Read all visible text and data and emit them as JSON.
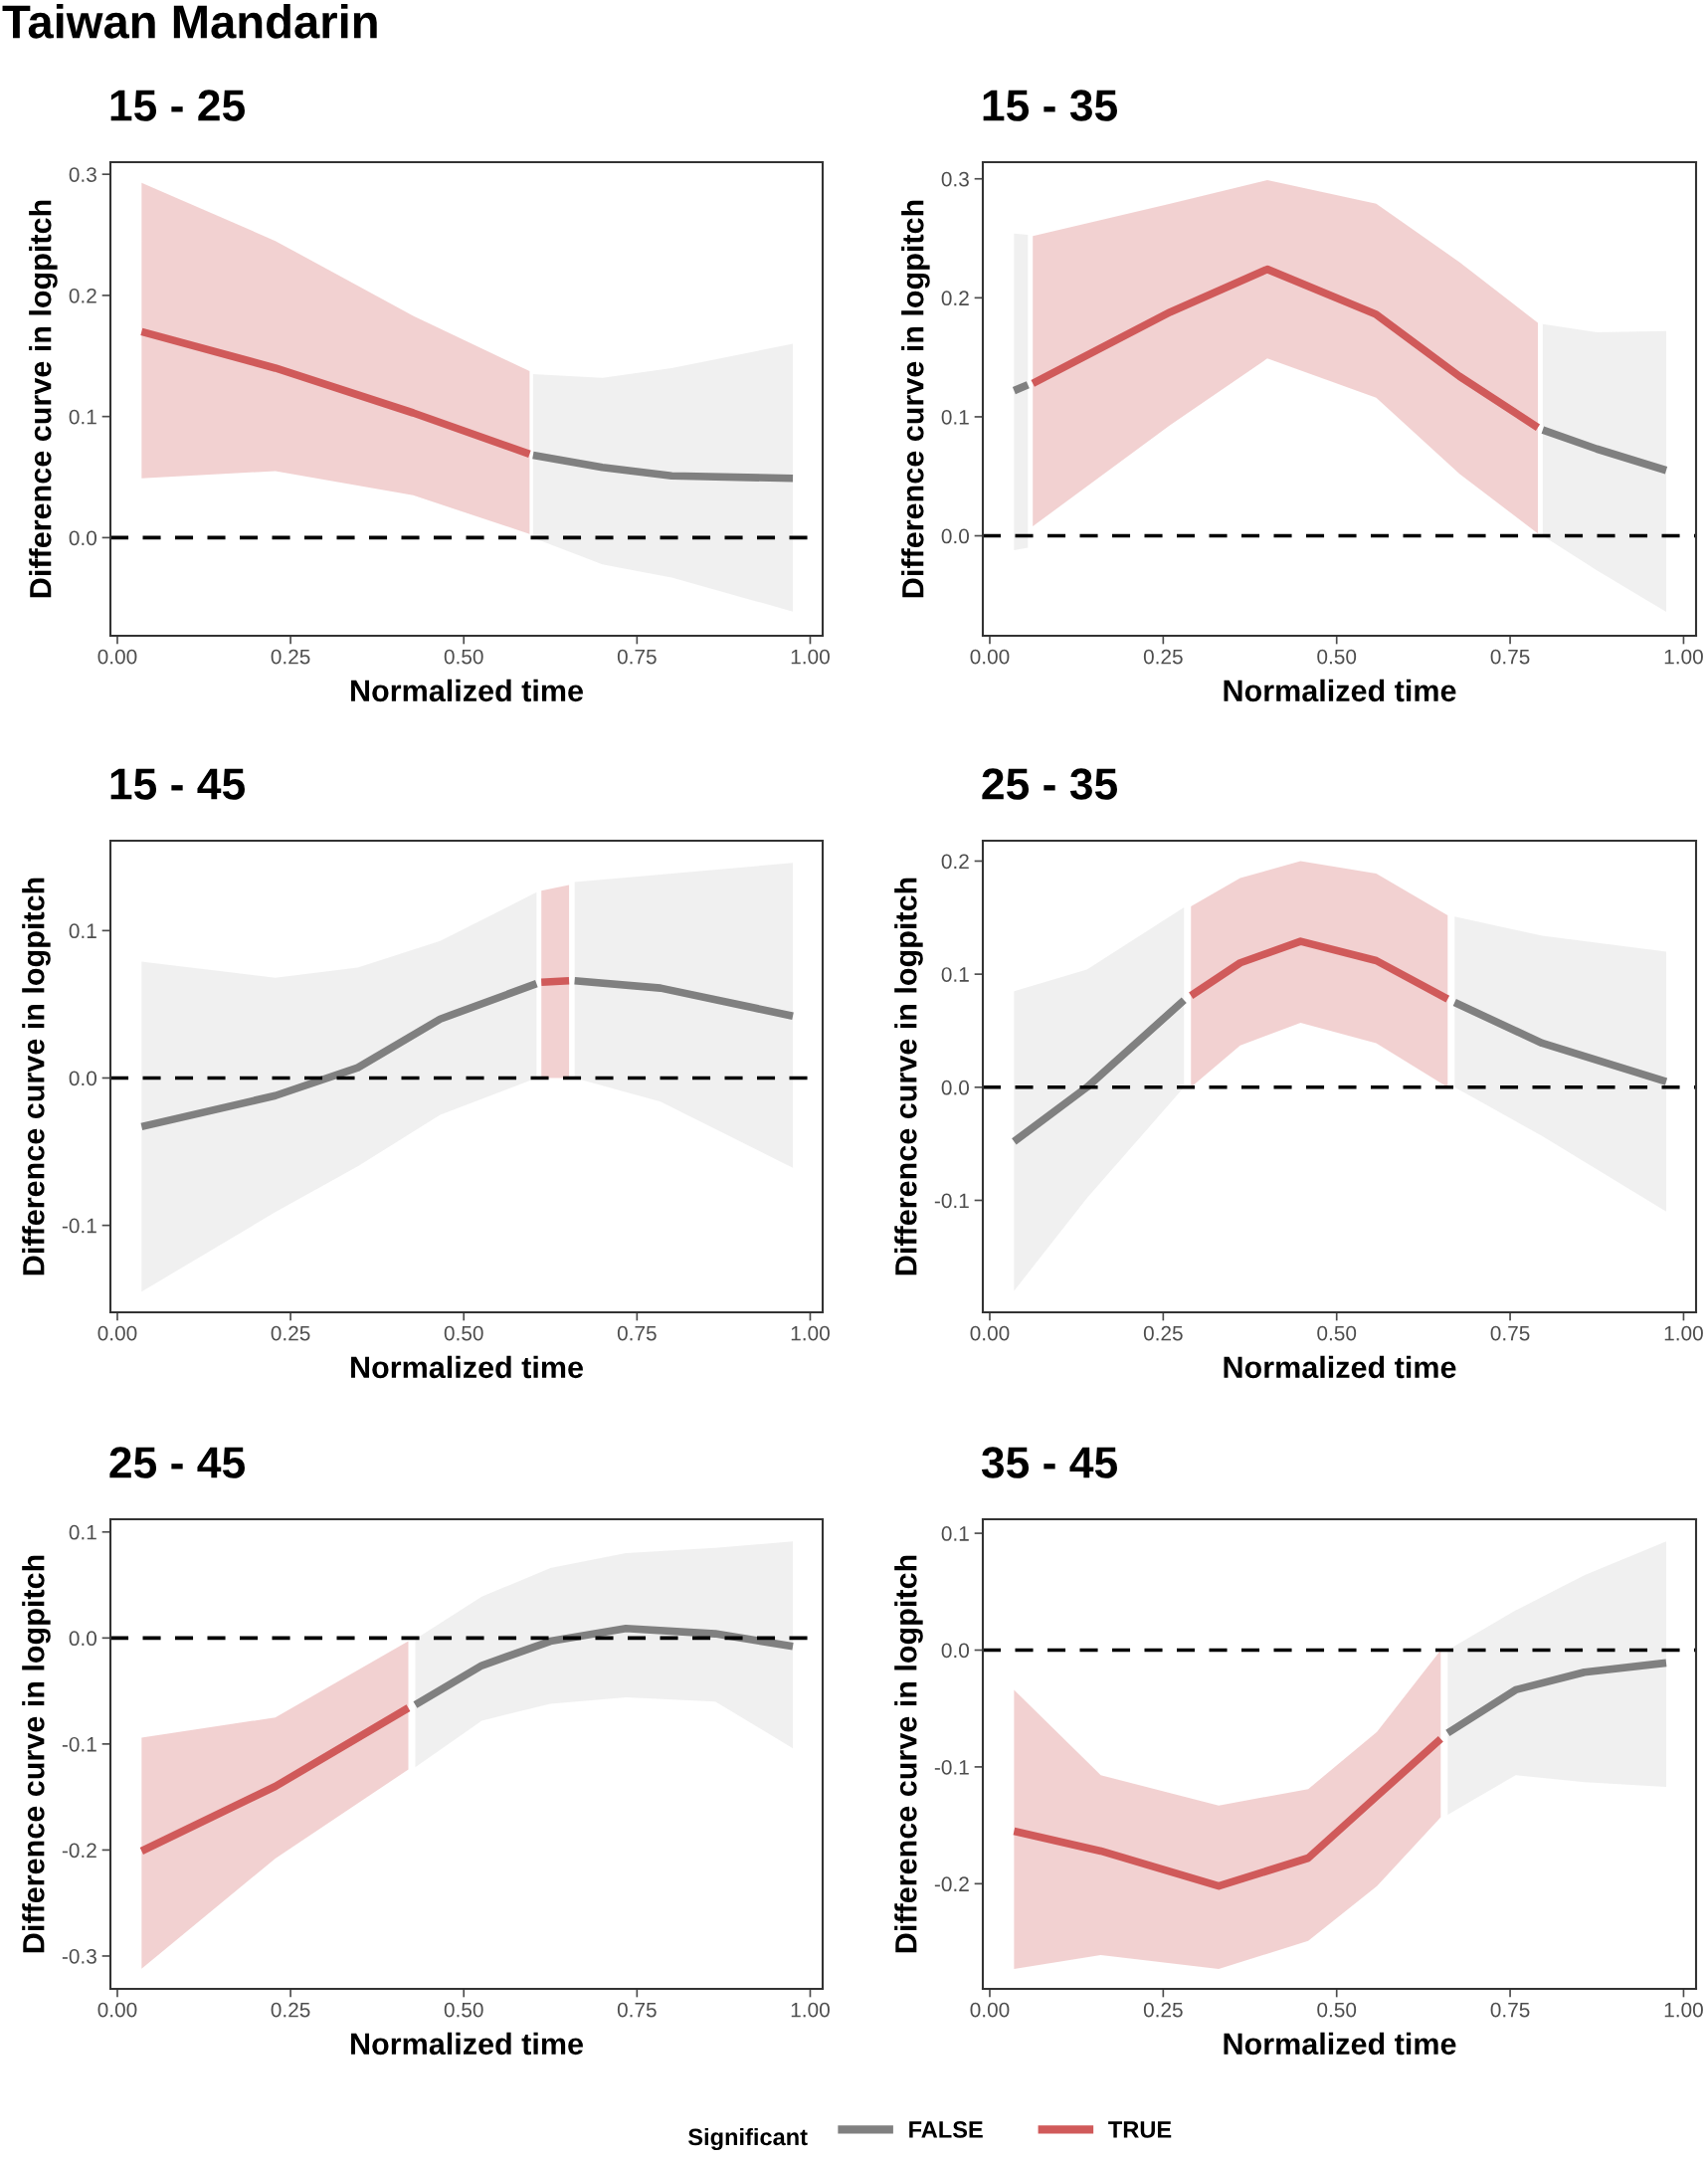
{
  "chart_data": [
    {
      "type": "line",
      "title": "15 - 25",
      "xlabel": "Normalized time",
      "ylabel": "Difference curve in logpitch",
      "annotations": [
        "Taiwan Mandarin"
      ],
      "legend": "bottom",
      "legend_title": "Significant",
      "xlim": [
        -0.01,
        1.018
      ],
      "ylim": [
        -0.081,
        0.31
      ],
      "xticks": [
        {
          "value": 0,
          "label": "0.00"
        },
        {
          "value": 0.25,
          "label": "0.25"
        },
        {
          "value": 0.5,
          "label": "0.50"
        },
        {
          "value": 0.75,
          "label": "0.75"
        },
        {
          "value": 1,
          "label": "1.00"
        }
      ],
      "yticks": [
        {
          "value": 0,
          "label": "0.0"
        },
        {
          "value": 0.1,
          "label": "0.1"
        },
        {
          "value": 0.2,
          "label": "0.2"
        },
        {
          "value": 0.3,
          "label": "0.3"
        }
      ],
      "ref_lines": [
        {
          "axis": "y",
          "value": 0,
          "color": "#000000",
          "line_style": "dashed"
        }
      ],
      "series": [
        {
          "name": "FALSE",
          "color": "#808080",
          "x": [
            0.6,
            0.7,
            0.8,
            0.975
          ],
          "values": [
            0.068,
            0.058,
            0.051,
            0.049
          ],
          "lower": [
            0.0,
            -0.022,
            -0.033,
            -0.061
          ],
          "upper": [
            0.135,
            0.132,
            0.14,
            0.16
          ]
        },
        {
          "name": "TRUE",
          "color": "#d05a5a",
          "x": [
            0.035,
            0.228,
            0.427,
            0.595
          ],
          "values": [
            0.17,
            0.14,
            0.103,
            0.069
          ],
          "lower": [
            0.049,
            0.055,
            0.035,
            0.003
          ],
          "upper": [
            0.293,
            0.245,
            0.183,
            0.1375
          ]
        }
      ]
    },
    {
      "type": "line",
      "title": "15 - 35",
      "xlabel": "Normalized time",
      "ylabel": "Difference curve in logpitch",
      "xlim": [
        -0.01,
        1.018
      ],
      "ylim": [
        -0.084,
        0.314
      ],
      "xticks": [
        {
          "value": 0,
          "label": "0.00"
        },
        {
          "value": 0.25,
          "label": "0.25"
        },
        {
          "value": 0.5,
          "label": "0.50"
        },
        {
          "value": 0.75,
          "label": "0.75"
        },
        {
          "value": 1,
          "label": "1.00"
        }
      ],
      "yticks": [
        {
          "value": 0,
          "label": "0.0"
        },
        {
          "value": 0.1,
          "label": "0.1"
        },
        {
          "value": 0.2,
          "label": "0.2"
        },
        {
          "value": 0.3,
          "label": "0.3"
        }
      ],
      "ref_lines": [
        {
          "axis": "y",
          "value": 0,
          "color": "#000000",
          "line_style": "dashed"
        }
      ],
      "series": [
        {
          "name": "FALSE",
          "color": "#808080",
          "x": [
            0.035,
            0.055
          ],
          "values": [
            0.122,
            0.127
          ],
          "lower": [
            -0.012,
            -0.01
          ],
          "upper": [
            0.254,
            0.253
          ]
        },
        {
          "name": "TRUE",
          "color": "#d05a5a",
          "x": [
            0.062,
            0.26,
            0.4,
            0.557,
            0.677,
            0.79
          ],
          "values": [
            0.128,
            0.188,
            0.224,
            0.186,
            0.134,
            0.091
          ],
          "lower": [
            0.008,
            0.093,
            0.149,
            0.116,
            0.052,
            0.002
          ],
          "upper": [
            0.252,
            0.279,
            0.299,
            0.279,
            0.23,
            0.179
          ]
        },
        {
          "name": "FALSE",
          "color": "#808080",
          "x": [
            0.797,
            0.875,
            0.975
          ],
          "values": [
            0.089,
            0.073,
            0.055
          ],
          "lower": [
            0.0,
            -0.029,
            -0.064
          ],
          "upper": [
            0.178,
            0.171,
            0.172
          ]
        }
      ]
    },
    {
      "type": "line",
      "title": "15 - 45",
      "xlabel": "Normalized time",
      "ylabel": "Difference curve in logpitch",
      "xlim": [
        -0.01,
        1.018
      ],
      "ylim": [
        -0.159,
        0.161
      ],
      "xticks": [
        {
          "value": 0,
          "label": "0.00"
        },
        {
          "value": 0.25,
          "label": "0.25"
        },
        {
          "value": 0.5,
          "label": "0.50"
        },
        {
          "value": 0.75,
          "label": "0.75"
        },
        {
          "value": 1,
          "label": "1.00"
        }
      ],
      "yticks": [
        {
          "value": -0.1,
          "label": "-0.1"
        },
        {
          "value": 0,
          "label": "0.0"
        },
        {
          "value": 0.1,
          "label": "0.1"
        }
      ],
      "ref_lines": [
        {
          "axis": "y",
          "value": 0,
          "color": "#000000",
          "line_style": "dashed"
        }
      ],
      "series": [
        {
          "name": "FALSE",
          "color": "#808080",
          "x": [
            0.035,
            0.228,
            0.347,
            0.466,
            0.605
          ],
          "values": [
            -0.033,
            -0.012,
            0.007,
            0.04,
            0.064
          ],
          "lower": [
            -0.145,
            -0.091,
            -0.06,
            -0.025,
            0.0
          ],
          "upper": [
            0.079,
            0.068,
            0.075,
            0.093,
            0.126
          ]
        },
        {
          "name": "TRUE",
          "color": "#d05a5a",
          "x": [
            0.612,
            0.652
          ],
          "values": [
            0.065,
            0.066
          ],
          "lower": [
            0.0,
            0.0
          ],
          "upper": [
            0.127,
            0.131
          ]
        },
        {
          "name": "FALSE",
          "color": "#808080",
          "x": [
            0.66,
            0.784,
            0.975
          ],
          "values": [
            0.066,
            0.061,
            0.042
          ],
          "lower": [
            0.0,
            -0.016,
            -0.061
          ],
          "upper": [
            0.133,
            0.138,
            0.146
          ]
        }
      ]
    },
    {
      "type": "line",
      "title": "25 - 35",
      "xlabel": "Normalized time",
      "ylabel": "Difference curve in logpitch",
      "xlim": [
        -0.01,
        1.018
      ],
      "ylim": [
        -0.199,
        0.218
      ],
      "xticks": [
        {
          "value": 0,
          "label": "0.00"
        },
        {
          "value": 0.25,
          "label": "0.25"
        },
        {
          "value": 0.5,
          "label": "0.50"
        },
        {
          "value": 0.75,
          "label": "0.75"
        },
        {
          "value": 1,
          "label": "1.00"
        }
      ],
      "yticks": [
        {
          "value": -0.1,
          "label": "-0.1"
        },
        {
          "value": 0,
          "label": "0.0"
        },
        {
          "value": 0.1,
          "label": "0.1"
        },
        {
          "value": 0.2,
          "label": "0.2"
        }
      ],
      "ref_lines": [
        {
          "axis": "y",
          "value": 0,
          "color": "#000000",
          "line_style": "dashed"
        }
      ],
      "series": [
        {
          "name": "FALSE",
          "color": "#808080",
          "x": [
            0.035,
            0.14,
            0.28
          ],
          "values": [
            -0.048,
            0.0,
            0.077
          ],
          "lower": [
            -0.18,
            -0.098,
            0.0
          ],
          "upper": [
            0.085,
            0.104,
            0.159
          ]
        },
        {
          "name": "TRUE",
          "color": "#d05a5a",
          "x": [
            0.29,
            0.361,
            0.448,
            0.557,
            0.66
          ],
          "values": [
            0.081,
            0.11,
            0.129,
            0.112,
            0.078
          ],
          "lower": [
            0.0,
            0.037,
            0.057,
            0.039,
            0.0
          ],
          "upper": [
            0.16,
            0.185,
            0.2,
            0.189,
            0.152
          ]
        },
        {
          "name": "FALSE",
          "color": "#808080",
          "x": [
            0.67,
            0.796,
            0.975
          ],
          "values": [
            0.075,
            0.039,
            0.005
          ],
          "lower": [
            0.0,
            -0.043,
            -0.11
          ],
          "upper": [
            0.151,
            0.134,
            0.12
          ]
        }
      ]
    },
    {
      "type": "line",
      "title": "25 - 45",
      "xlabel": "Normalized time",
      "ylabel": "Difference curve in logpitch",
      "xlim": [
        -0.01,
        1.018
      ],
      "ylim": [
        -0.331,
        0.112
      ],
      "xticks": [
        {
          "value": 0,
          "label": "0.00"
        },
        {
          "value": 0.25,
          "label": "0.25"
        },
        {
          "value": 0.5,
          "label": "0.50"
        },
        {
          "value": 0.75,
          "label": "0.75"
        },
        {
          "value": 1,
          "label": "1.00"
        }
      ],
      "yticks": [
        {
          "value": -0.3,
          "label": "-0.3"
        },
        {
          "value": -0.2,
          "label": "-0.2"
        },
        {
          "value": -0.1,
          "label": "-0.1"
        },
        {
          "value": 0,
          "label": "0.0"
        },
        {
          "value": 0.1,
          "label": "0.1"
        }
      ],
      "ref_lines": [
        {
          "axis": "y",
          "value": 0,
          "color": "#000000",
          "line_style": "dashed"
        }
      ],
      "series": [
        {
          "name": "TRUE",
          "color": "#d05a5a",
          "x": [
            0.035,
            0.228,
            0.42
          ],
          "values": [
            -0.201,
            -0.14,
            -0.066
          ],
          "lower": [
            -0.312,
            -0.208,
            -0.124
          ],
          "upper": [
            -0.094,
            -0.075,
            -0.003
          ]
        },
        {
          "name": "FALSE",
          "color": "#808080",
          "x": [
            0.43,
            0.526,
            0.625,
            0.734,
            0.863,
            0.975
          ],
          "values": [
            -0.063,
            -0.026,
            -0.003,
            0.009,
            0.004,
            -0.008
          ],
          "lower": [
            -0.122,
            -0.078,
            -0.062,
            -0.056,
            -0.06,
            -0.104
          ],
          "upper": [
            -0.001,
            0.039,
            0.066,
            0.08,
            0.085,
            0.091
          ]
        }
      ]
    },
    {
      "type": "line",
      "title": "35 - 45",
      "xlabel": "Normalized time",
      "ylabel": "Difference curve in logpitch",
      "xlim": [
        -0.01,
        1.018
      ],
      "ylim": [
        -0.29,
        0.112
      ],
      "xticks": [
        {
          "value": 0,
          "label": "0.00"
        },
        {
          "value": 0.25,
          "label": "0.25"
        },
        {
          "value": 0.5,
          "label": "0.50"
        },
        {
          "value": 0.75,
          "label": "0.75"
        },
        {
          "value": 1,
          "label": "1.00"
        }
      ],
      "yticks": [
        {
          "value": -0.2,
          "label": "-0.2"
        },
        {
          "value": -0.1,
          "label": "-0.1"
        },
        {
          "value": 0,
          "label": "0.0"
        },
        {
          "value": 0.1,
          "label": "0.1"
        }
      ],
      "ref_lines": [
        {
          "axis": "y",
          "value": 0,
          "color": "#000000",
          "line_style": "dashed"
        }
      ],
      "series": [
        {
          "name": "TRUE",
          "color": "#d05a5a",
          "x": [
            0.035,
            0.16,
            0.33,
            0.459,
            0.558,
            0.65
          ],
          "values": [
            -0.155,
            -0.172,
            -0.202,
            -0.178,
            -0.125,
            -0.076
          ],
          "lower": [
            -0.273,
            -0.261,
            -0.273,
            -0.249,
            -0.202,
            -0.143
          ],
          "upper": [
            -0.034,
            -0.107,
            -0.133,
            -0.119,
            -0.07,
            0.0
          ]
        },
        {
          "name": "FALSE",
          "color": "#808080",
          "x": [
            0.66,
            0.758,
            0.857,
            0.975
          ],
          "values": [
            -0.071,
            -0.034,
            -0.019,
            -0.011
          ],
          "lower": [
            -0.141,
            -0.107,
            -0.113,
            -0.117
          ],
          "upper": [
            0.0,
            0.034,
            0.064,
            0.093
          ]
        }
      ]
    }
  ]
}
